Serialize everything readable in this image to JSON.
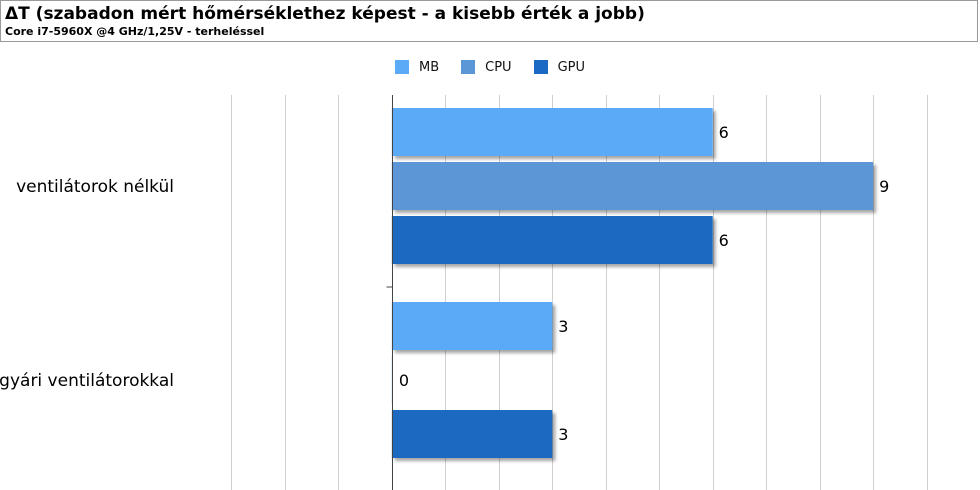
{
  "chart_data": {
    "type": "bar",
    "orientation": "horizontal",
    "title": "ΔT (szabadon mért hőmérséklethez képest - a kisebb érték a jobb)",
    "subtitle": "Core i7-5960X @4 GHz/1,25V - terheléssel",
    "categories": [
      "ventilátorok nélkül",
      "gyári ventilátorokkal"
    ],
    "series": [
      {
        "name": "MB",
        "color": "#5aaaf8",
        "values": [
          6,
          3
        ]
      },
      {
        "name": "CPU",
        "color": "#5b96d6",
        "values": [
          9,
          0
        ]
      },
      {
        "name": "GPU",
        "color": "#1a69c2",
        "values": [
          6,
          3
        ]
      }
    ],
    "xlim": [
      -4,
      11
    ],
    "grid": true,
    "legend_position": "top-center"
  }
}
